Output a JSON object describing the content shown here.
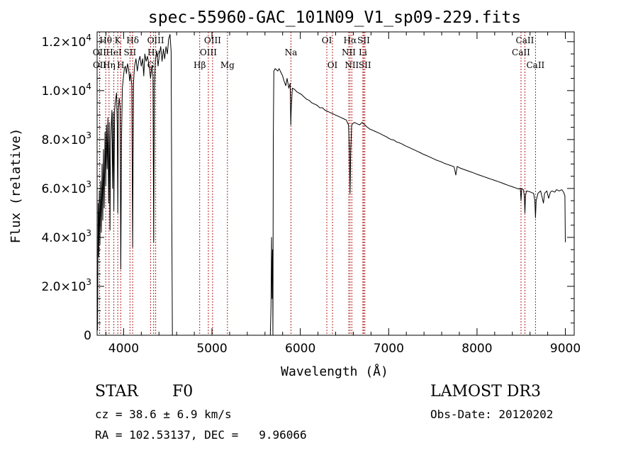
{
  "chart_data": {
    "type": "line",
    "title": "spec-55960-GAC_101N09_V1_sp09-229.fits",
    "xlabel": "Wavelength (Å)",
    "ylabel": "Flux (relative)",
    "xlim": [
      3700,
      9100
    ],
    "ylim": [
      0,
      12400
    ],
    "x_ticks": [
      4000,
      5000,
      6000,
      7000,
      8000,
      9000
    ],
    "y_ticks": [
      {
        "value": 0,
        "mant": "0",
        "exp": ""
      },
      {
        "value": 2000,
        "mant": "2.0×10",
        "exp": "3"
      },
      {
        "value": 4000,
        "mant": "4.0×10",
        "exp": "3"
      },
      {
        "value": 6000,
        "mant": "6.0×10",
        "exp": "3"
      },
      {
        "value": 8000,
        "mant": "8.0×10",
        "exp": "3"
      },
      {
        "value": 10000,
        "mant": "1.0×10",
        "exp": "4"
      },
      {
        "value": 12000,
        "mant": "1.2×10",
        "exp": "4"
      }
    ],
    "spectral_lines": [
      {
        "label": "Hθ",
        "wl": 3797,
        "row": 0
      },
      {
        "label": "OII",
        "wl": 3727,
        "row": 1
      },
      {
        "label": "OII",
        "wl": 3729,
        "row": 2
      },
      {
        "label": "Hη",
        "wl": 3835,
        "row": 2
      },
      {
        "label": "HeI",
        "wl": 3889,
        "row": 1
      },
      {
        "label": "K",
        "wl": 3934,
        "row": 0
      },
      {
        "label": "H",
        "wl": 3968,
        "row": 2
      },
      {
        "label": "Hδ",
        "wl": 4102,
        "row": 0
      },
      {
        "label": "SII",
        "wl": 4072,
        "row": 1
      },
      {
        "label": "Hγ",
        "wl": 4340,
        "row": 1
      },
      {
        "label": "OIII",
        "wl": 4363,
        "row": 0
      },
      {
        "label": "G",
        "wl": 4305,
        "row": 2
      },
      {
        "label": "Hβ",
        "wl": 4861,
        "row": 2
      },
      {
        "label": "OIII",
        "wl": 5007,
        "row": 0
      },
      {
        "label": "OIII",
        "wl": 4959,
        "row": 1
      },
      {
        "label": "Mg",
        "wl": 5175,
        "row": 2
      },
      {
        "label": "Na",
        "wl": 5894,
        "row": 1
      },
      {
        "label": "OI",
        "wl": 6300,
        "row": 0
      },
      {
        "label": "OI",
        "wl": 6364,
        "row": 2
      },
      {
        "label": "Hα",
        "wl": 6563,
        "row": 0
      },
      {
        "label": "NII",
        "wl": 6548,
        "row": 1
      },
      {
        "label": "NII",
        "wl": 6583,
        "row": 2
      },
      {
        "label": "SII",
        "wl": 6717,
        "row": 0
      },
      {
        "label": "Li",
        "wl": 6708,
        "row": 1
      },
      {
        "label": "SII",
        "wl": 6731,
        "row": 2
      },
      {
        "label": "CaII",
        "wl": 8542,
        "row": 0
      },
      {
        "label": "CaII",
        "wl": 8498,
        "row": 1
      },
      {
        "label": "CaII",
        "wl": 8662,
        "row": 2
      }
    ],
    "series": [
      {
        "name": "flux",
        "segments": [
          [
            [
              3705,
              200
            ],
            [
              3712,
              5400
            ],
            [
              3718,
              3200
            ],
            [
              3725,
              5900
            ],
            [
              3732,
              3700
            ],
            [
              3740,
              6300
            ],
            [
              3748,
              4200
            ],
            [
              3756,
              7000
            ],
            [
              3764,
              4700
            ],
            [
              3772,
              7600
            ],
            [
              3780,
              5200
            ],
            [
              3790,
              8300
            ],
            [
              3798,
              6100
            ],
            [
              3806,
              8600
            ],
            [
              3814,
              6800
            ],
            [
              3822,
              8900
            ],
            [
              3830,
              5400
            ],
            [
              3838,
              8700
            ],
            [
              3846,
              4300
            ],
            [
              3852,
              7900
            ],
            [
              3860,
              8600
            ],
            [
              3868,
              9200
            ],
            [
              3875,
              6000
            ],
            [
              3882,
              9100
            ],
            [
              3889,
              5100
            ],
            [
              3898,
              9200
            ],
            [
              3908,
              9600
            ],
            [
              3920,
              9900
            ],
            [
              3928,
              8600
            ],
            [
              3934,
              5000
            ],
            [
              3940,
              9200
            ],
            [
              3950,
              9700
            ],
            [
              3960,
              9300
            ],
            [
              3968,
              2700
            ],
            [
              3976,
              8000
            ],
            [
              3986,
              10100
            ],
            [
              3996,
              10500
            ],
            [
              4008,
              10900
            ],
            [
              4020,
              11000
            ],
            [
              4032,
              10700
            ],
            [
              4044,
              11100
            ],
            [
              4056,
              10900
            ],
            [
              4068,
              10400
            ],
            [
              4080,
              10700
            ],
            [
              4092,
              10200
            ],
            [
              4102,
              3600
            ],
            [
              4112,
              10300
            ],
            [
              4124,
              11000
            ],
            [
              4140,
              11300
            ],
            [
              4155,
              10800
            ],
            [
              4170,
              11200
            ],
            [
              4185,
              11400
            ],
            [
              4200,
              11000
            ],
            [
              4215,
              11300
            ],
            [
              4228,
              10600
            ],
            [
              4240,
              11500
            ],
            [
              4255,
              11200
            ],
            [
              4270,
              11400
            ],
            [
              4290,
              11000
            ],
            [
              4305,
              10500
            ],
            [
              4320,
              11000
            ],
            [
              4332,
              10600
            ],
            [
              4340,
              3800
            ],
            [
              4348,
              10200
            ],
            [
              4360,
              11300
            ],
            [
              4375,
              11600
            ],
            [
              4390,
              11000
            ],
            [
              4405,
              11500
            ],
            [
              4420,
              11800
            ],
            [
              4435,
              11200
            ],
            [
              4450,
              11700
            ],
            [
              4465,
              11300
            ],
            [
              4480,
              11800
            ],
            [
              4495,
              11500
            ],
            [
              4510,
              12100
            ],
            [
              4525,
              12300
            ],
            [
              4538,
              11600
            ],
            [
              4546,
              4500
            ],
            [
              4552,
              0
            ]
          ],
          [
            [
              5660,
              0
            ],
            [
              5668,
              1200
            ],
            [
              5675,
              4000
            ],
            [
              5680,
              1500
            ],
            [
              5686,
              3500
            ],
            [
              5690,
              0
            ],
            [
              5694,
              8000
            ],
            [
              5700,
              10800
            ],
            [
              5715,
              10900
            ],
            [
              5730,
              10850
            ],
            [
              5745,
              10800
            ],
            [
              5760,
              10900
            ],
            [
              5780,
              10750
            ],
            [
              5800,
              10600
            ],
            [
              5815,
              10400
            ],
            [
              5835,
              10200
            ],
            [
              5850,
              10500
            ],
            [
              5870,
              10100
            ],
            [
              5885,
              10300
            ],
            [
              5892,
              8600
            ],
            [
              5898,
              9300
            ],
            [
              5910,
              10100
            ],
            [
              5935,
              10050
            ],
            [
              5960,
              9950
            ],
            [
              5985,
              9900
            ],
            [
              6010,
              9850
            ],
            [
              6040,
              9750
            ],
            [
              6070,
              9650
            ],
            [
              6100,
              9600
            ],
            [
              6130,
              9500
            ],
            [
              6160,
              9450
            ],
            [
              6190,
              9400
            ],
            [
              6220,
              9300
            ],
            [
              6250,
              9300
            ],
            [
              6280,
              9200
            ],
            [
              6310,
              9150
            ],
            [
              6340,
              9100
            ],
            [
              6370,
              9050
            ],
            [
              6400,
              9000
            ],
            [
              6430,
              8950
            ],
            [
              6460,
              8900
            ],
            [
              6490,
              8850
            ],
            [
              6520,
              8800
            ],
            [
              6545,
              8600
            ],
            [
              6555,
              7600
            ],
            [
              6563,
              5800
            ],
            [
              6571,
              7600
            ],
            [
              6581,
              8600
            ],
            [
              6610,
              8700
            ],
            [
              6640,
              8650
            ],
            [
              6670,
              8600
            ],
            [
              6700,
              8700
            ],
            [
              6730,
              8600
            ],
            [
              6760,
              8500
            ],
            [
              6790,
              8420
            ],
            [
              6820,
              8380
            ],
            [
              6850,
              8330
            ],
            [
              6880,
              8280
            ],
            [
              6910,
              8230
            ],
            [
              6940,
              8170
            ],
            [
              6970,
              8120
            ],
            [
              7000,
              8050
            ],
            [
              7030,
              8000
            ],
            [
              7060,
              7980
            ],
            [
              7090,
              7900
            ],
            [
              7120,
              7870
            ],
            [
              7150,
              7820
            ],
            [
              7180,
              7760
            ],
            [
              7210,
              7710
            ],
            [
              7240,
              7660
            ],
            [
              7270,
              7610
            ],
            [
              7300,
              7560
            ],
            [
              7330,
              7510
            ],
            [
              7360,
              7460
            ],
            [
              7390,
              7400
            ],
            [
              7420,
              7360
            ],
            [
              7450,
              7310
            ],
            [
              7480,
              7260
            ],
            [
              7510,
              7210
            ],
            [
              7540,
              7160
            ],
            [
              7570,
              7120
            ],
            [
              7600,
              7080
            ],
            [
              7630,
              7030
            ],
            [
              7660,
              6990
            ],
            [
              7700,
              6940
            ],
            [
              7740,
              6890
            ],
            [
              7760,
              6550
            ],
            [
              7775,
              6900
            ],
            [
              7800,
              6850
            ],
            [
              7840,
              6790
            ],
            [
              7880,
              6740
            ],
            [
              7920,
              6690
            ],
            [
              7960,
              6640
            ],
            [
              8000,
              6580
            ],
            [
              8040,
              6530
            ],
            [
              8080,
              6480
            ],
            [
              8120,
              6430
            ],
            [
              8160,
              6380
            ],
            [
              8200,
              6330
            ],
            [
              8240,
              6280
            ],
            [
              8280,
              6230
            ],
            [
              8320,
              6170
            ],
            [
              8360,
              6120
            ],
            [
              8400,
              6070
            ],
            [
              8440,
              6020
            ],
            [
              8470,
              5980
            ],
            [
              8490,
              6010
            ],
            [
              8498,
              5500
            ],
            [
              8506,
              6000
            ],
            [
              8525,
              5950
            ],
            [
              8535,
              5700
            ],
            [
              8542,
              5000
            ],
            [
              8549,
              5700
            ],
            [
              8560,
              5900
            ],
            [
              8600,
              5860
            ],
            [
              8640,
              5800
            ],
            [
              8655,
              5500
            ],
            [
              8662,
              4800
            ],
            [
              8669,
              5500
            ],
            [
              8690,
              5800
            ],
            [
              8720,
              5900
            ],
            [
              8740,
              5600
            ],
            [
              8752,
              5400
            ],
            [
              8765,
              5800
            ],
            [
              8790,
              5900
            ],
            [
              8810,
              5600
            ],
            [
              8830,
              5850
            ],
            [
              8850,
              5900
            ],
            [
              8880,
              5850
            ],
            [
              8900,
              5950
            ],
            [
              8930,
              5900
            ],
            [
              8960,
              5950
            ],
            [
              8980,
              5850
            ],
            [
              8995,
              5700
            ],
            [
              9000,
              3800
            ]
          ]
        ]
      }
    ]
  },
  "info": {
    "object_class": "STAR",
    "subclass": "F0",
    "cz": "cz = 38.6 ± 6.9 km/s",
    "coords": "RA = 102.53137, DEC =   9.96066",
    "survey": "LAMOST DR3",
    "obs_date": "Obs-Date: 20120202"
  },
  "colors": {
    "line_marker": "#b22222",
    "spectrum": "#000000"
  }
}
